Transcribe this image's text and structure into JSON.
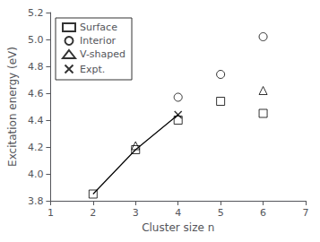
{
  "chart_data": {
    "type": "scatter",
    "xlabel": "Cluster size n",
    "ylabel": "Excitation energy (eV)",
    "xlim": [
      1,
      7
    ],
    "ylim": [
      3.8,
      5.2
    ],
    "xticks": [
      1,
      2,
      3,
      4,
      5,
      6,
      7
    ],
    "yticks": [
      3.8,
      {
        "value": 4.0,
        "label": "4.0"
      },
      4.2,
      4.4,
      4.6,
      4.8,
      {
        "value": 5.0,
        "label": "5.0"
      },
      5.2
    ],
    "grid": false,
    "legend": "upper left",
    "series": [
      {
        "type": "line",
        "line_style": "solid",
        "color": "black",
        "x": [
          2,
          3,
          4
        ],
        "values": [
          3.85,
          4.18,
          4.44
        ]
      },
      {
        "name": "Surface",
        "type": "scatter",
        "marker": "square",
        "color": "black",
        "x": [
          2,
          3,
          4,
          5,
          6
        ],
        "values": [
          3.85,
          4.18,
          4.4,
          4.54,
          4.45
        ]
      },
      {
        "name": "Interior",
        "type": "scatter",
        "marker": "circle",
        "color": "black",
        "x": [
          4,
          5,
          6
        ],
        "values": [
          4.57,
          4.74,
          5.02
        ]
      },
      {
        "name": "V-shaped",
        "type": "scatter",
        "marker": "triangle",
        "color": "black",
        "x": [
          3,
          6
        ],
        "values": [
          4.21,
          4.62
        ]
      },
      {
        "name": "Expt.",
        "type": "scatter",
        "marker": "x",
        "color": "black",
        "x": [
          4
        ],
        "values": [
          4.44
        ]
      }
    ]
  }
}
